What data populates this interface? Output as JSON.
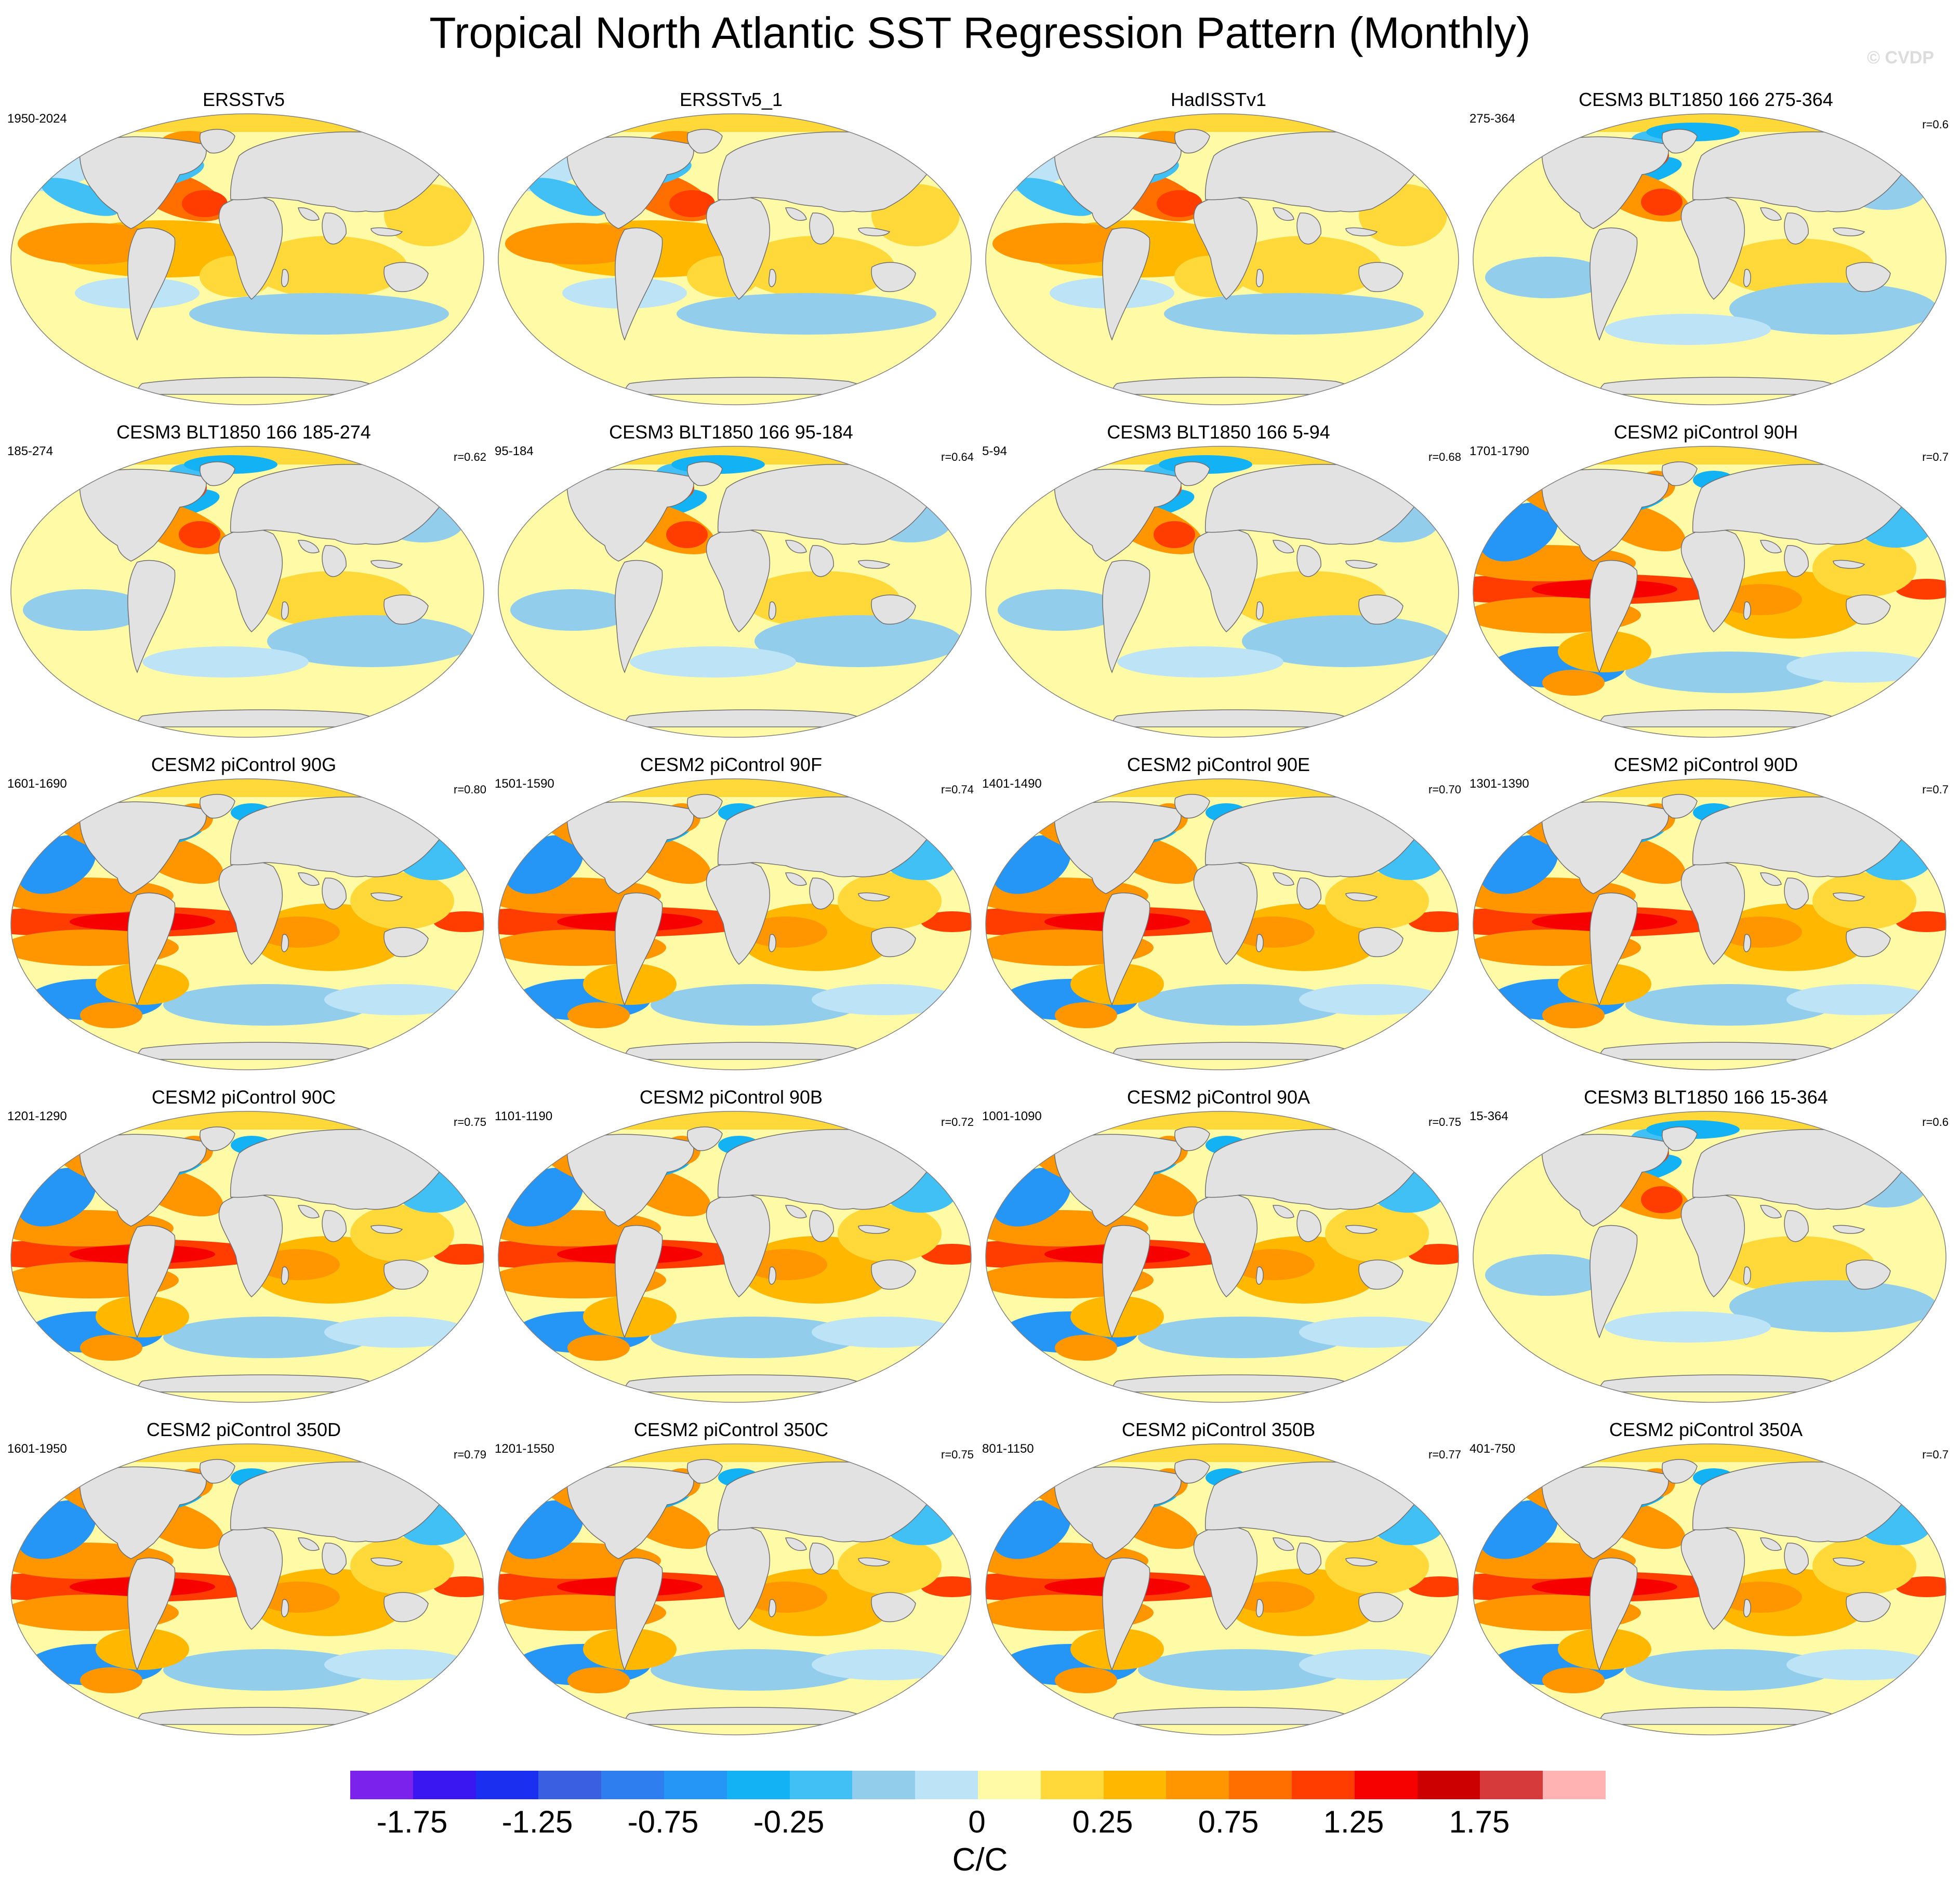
{
  "title": "Tropical North Atlantic SST Regression Pattern (Monthly)",
  "watermark": "© CVDP",
  "panels": [
    {
      "title": "ERSSTv5",
      "period": "1950-2024",
      "r": "",
      "pattern": 0
    },
    {
      "title": "ERSSTv5_1",
      "period": "",
      "r": "",
      "pattern": 0
    },
    {
      "title": "HadISSTv1",
      "period": "",
      "r": "",
      "pattern": 0
    },
    {
      "title": "CESM3 BLT1850 166 275-364",
      "period": "275-364",
      "r": "r=0.6",
      "pattern": 1
    },
    {
      "title": "CESM3 BLT1850 166 185-274",
      "period": "185-274",
      "r": "r=0.62",
      "pattern": 1
    },
    {
      "title": "CESM3 BLT1850 166 95-184",
      "period": "95-184",
      "r": "r=0.64",
      "pattern": 1
    },
    {
      "title": "CESM3 BLT1850 166 5-94",
      "period": "5-94",
      "r": "r=0.68",
      "pattern": 1
    },
    {
      "title": "CESM2 piControl 90H",
      "period": "1701-1790",
      "r": "r=0.7",
      "pattern": 2
    },
    {
      "title": "CESM2 piControl 90G",
      "period": "1601-1690",
      "r": "r=0.80",
      "pattern": 2
    },
    {
      "title": "CESM2 piControl 90F",
      "period": "1501-1590",
      "r": "r=0.74",
      "pattern": 2
    },
    {
      "title": "CESM2 piControl 90E",
      "period": "1401-1490",
      "r": "r=0.70",
      "pattern": 2
    },
    {
      "title": "CESM2 piControl 90D",
      "period": "1301-1390",
      "r": "r=0.7",
      "pattern": 2
    },
    {
      "title": "CESM2 piControl 90C",
      "period": "1201-1290",
      "r": "r=0.75",
      "pattern": 2
    },
    {
      "title": "CESM2 piControl 90B",
      "period": "1101-1190",
      "r": "r=0.72",
      "pattern": 2
    },
    {
      "title": "CESM2 piControl 90A",
      "period": "1001-1090",
      "r": "r=0.75",
      "pattern": 2
    },
    {
      "title": "CESM3 BLT1850 166 15-364",
      "period": "15-364",
      "r": "r=0.6",
      "pattern": 1
    },
    {
      "title": "CESM2 piControl 350D",
      "period": "1601-1950",
      "r": "r=0.79",
      "pattern": 2
    },
    {
      "title": "CESM2 piControl 350C",
      "period": "1201-1550",
      "r": "r=0.75",
      "pattern": 2
    },
    {
      "title": "CESM2 piControl 350B",
      "period": "801-1150",
      "r": "r=0.77",
      "pattern": 2
    },
    {
      "title": "CESM2 piControl 350A",
      "period": "401-750",
      "r": "r=0.7",
      "pattern": 2
    }
  ],
  "colorbar": {
    "colors": [
      "#7b22ec",
      "#3a16f0",
      "#1a2ff0",
      "#3a5fe0",
      "#2f7ef0",
      "#2596f5",
      "#12b2f5",
      "#40c0f5",
      "#92cdec",
      "#bde3f6",
      "#fffaa6",
      "#ffd93a",
      "#ffb700",
      "#ff9600",
      "#ff6f00",
      "#ff3d00",
      "#f60000",
      "#cc0000",
      "#d63a3a",
      "#ffb3b3"
    ],
    "ticks": [
      "-1.75",
      "-1.25",
      "-0.75",
      "-0.25",
      "0",
      "0.25",
      "0.75",
      "1.25",
      "1.75"
    ],
    "unit": "C/C"
  },
  "colors": {
    "land": "#e2e2e2",
    "coast": "#6e6e6e"
  }
}
